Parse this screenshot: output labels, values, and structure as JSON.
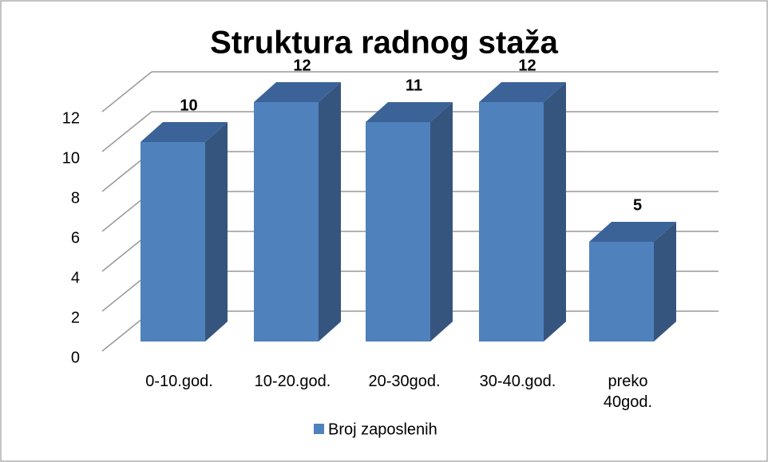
{
  "chart_data": {
    "type": "bar3d",
    "title": "Struktura radnog staža",
    "categories": [
      "0-10.god.",
      "10-20.god.",
      "20-30god.",
      "30-40.god.",
      "preko 40god."
    ],
    "series": [
      {
        "name": "Broj zaposlenih",
        "color": "#4f81bd",
        "values": [
          10,
          12,
          11,
          12,
          5
        ]
      }
    ],
    "ylim": [
      0,
      12
    ],
    "yticks": [
      0,
      2,
      4,
      6,
      8,
      10,
      12
    ],
    "grid": true,
    "legend": "bottom"
  }
}
